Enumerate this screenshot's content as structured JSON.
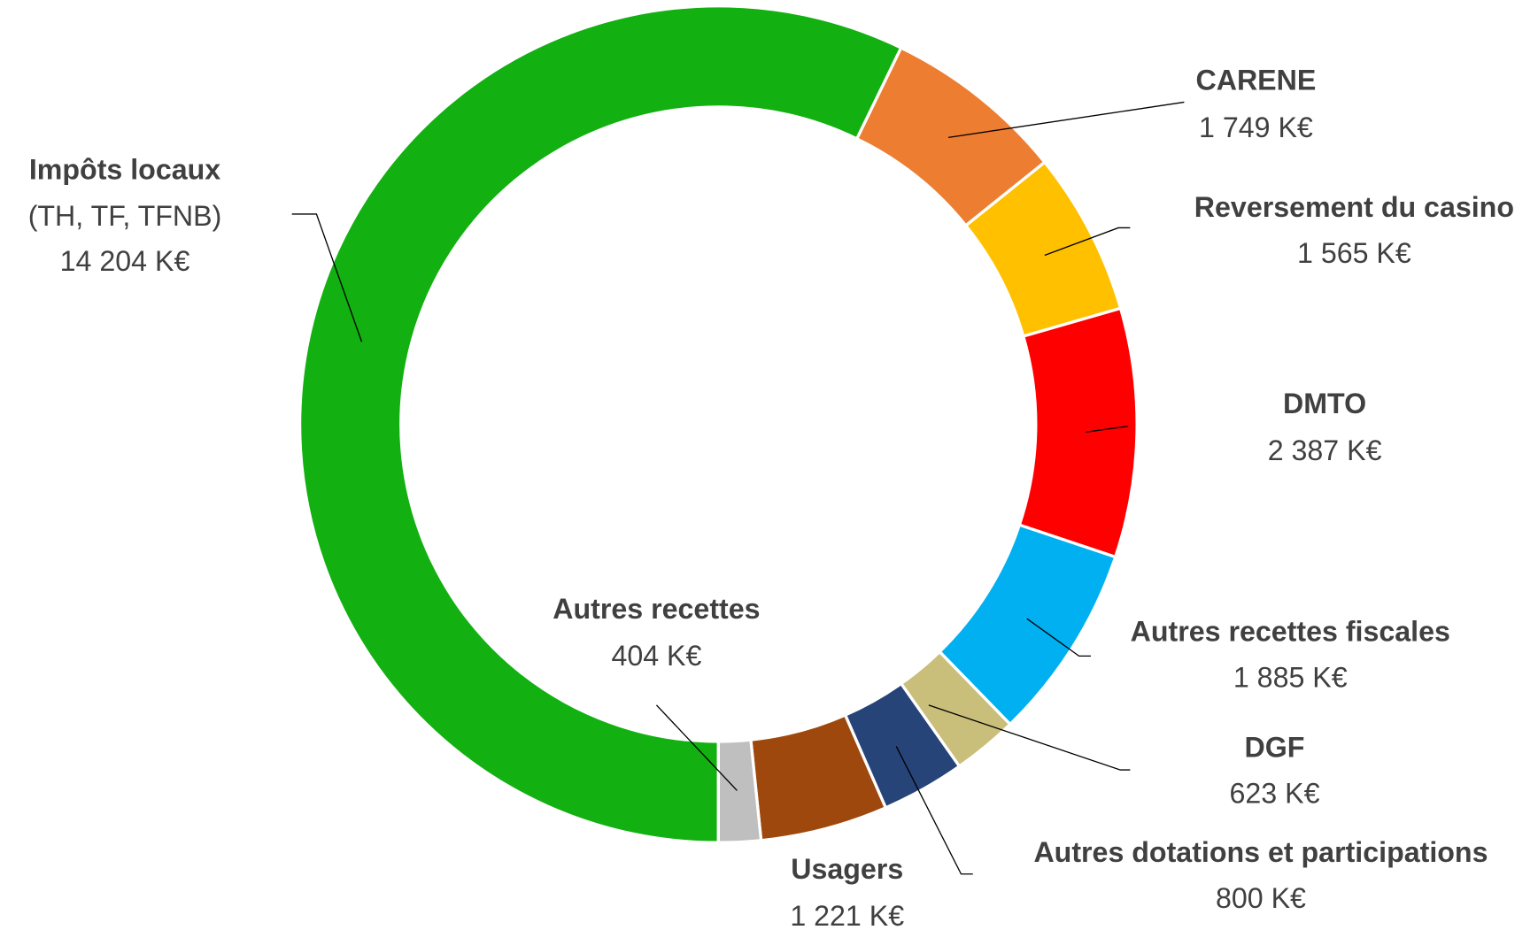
{
  "chart_data": {
    "type": "donut",
    "categories": [
      "Impôts locaux",
      "CARENE",
      "Reversement du casino",
      "DMTO",
      "Autres recettes fiscales",
      "DGF",
      "Autres dotations et participations",
      "Usagers",
      "Autres recettes"
    ],
    "values": [
      14204,
      1749,
      1565,
      2387,
      1885,
      623,
      800,
      1221,
      404
    ],
    "value_labels": [
      "14 204 K€",
      "1 749 K€",
      "1 565 K€",
      "2 387 K€",
      "1 885 K€",
      "623 K€",
      "800 K€",
      "1 221 K€",
      "404 K€"
    ],
    "colors": [
      "#12b010",
      "#ed7d31",
      "#ffc000",
      "#ff0000",
      "#00b0f0",
      "#c9bf7a",
      "#264478",
      "#9e480e",
      "#bfbfbf"
    ],
    "annotation": "(TH, TF, TFNB)"
  }
}
